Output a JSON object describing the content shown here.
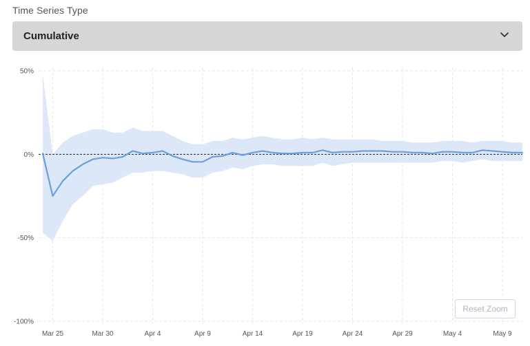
{
  "form": {
    "label": "Time Series Type",
    "selected": "Cumulative"
  },
  "reset_zoom_label": "Reset Zoom",
  "colors": {
    "line": "#6a9fdc",
    "band": "#dce8f7",
    "zero_line": "#222222",
    "grid": "#e6e6e6",
    "select_bg": "#d6d6d6"
  },
  "chart_data": {
    "type": "line",
    "title": "",
    "xlabel": "",
    "ylabel": "",
    "grid": true,
    "ylim": [
      -100,
      50
    ],
    "y_ticks": [
      50,
      0,
      -50,
      -100
    ],
    "y_tick_labels": [
      "50%",
      "0%",
      "-50%",
      "-100%"
    ],
    "x_ticks": [
      "Mar 25",
      "Mar 30",
      "Apr 4",
      "Apr 9",
      "Apr 14",
      "Apr 19",
      "Apr 24",
      "Apr 29",
      "May 4",
      "May 9"
    ],
    "x_start": "Mar 24",
    "x_end": "May 11",
    "series": [
      {
        "values": [
          0.5,
          -25,
          -16,
          -10,
          -6,
          -3,
          -2,
          -2.5,
          -1.5,
          2,
          0.5,
          1,
          2,
          -1,
          -3,
          -4.5,
          -4.5,
          -1.5,
          -1,
          1,
          -0.5,
          1,
          2,
          1,
          0.5,
          0.5,
          1,
          1,
          2.5,
          1,
          1.5,
          1.5,
          2,
          2,
          2,
          1.5,
          1.5,
          1,
          1,
          0.5,
          1.5,
          1.5,
          1,
          1,
          2.5,
          2,
          1.5,
          1,
          1
        ],
        "upper": [
          48,
          0,
          7,
          11,
          13,
          15,
          15,
          13,
          13,
          16,
          14,
          14,
          14,
          11,
          8,
          6,
          6,
          8,
          8,
          10,
          9,
          10,
          11,
          10,
          9,
          9,
          10,
          9,
          10,
          9,
          9,
          9,
          9,
          9,
          8,
          8,
          8,
          7,
          7,
          7,
          8,
          8,
          8,
          7,
          8,
          8,
          8,
          7,
          7
        ],
        "lower": [
          -47,
          -52,
          -40,
          -30,
          -25,
          -19,
          -18,
          -17,
          -14,
          -11,
          -11,
          -10,
          -10,
          -11,
          -12,
          -14,
          -14,
          -11,
          -10,
          -8,
          -9,
          -7,
          -6,
          -6,
          -7,
          -7,
          -7,
          -7,
          -5,
          -7,
          -6,
          -5,
          -5,
          -5,
          -5,
          -5,
          -5,
          -5,
          -5,
          -5,
          -4,
          -4,
          -5,
          -4,
          -3,
          -4,
          -4,
          -4,
          -4
        ]
      }
    ]
  }
}
